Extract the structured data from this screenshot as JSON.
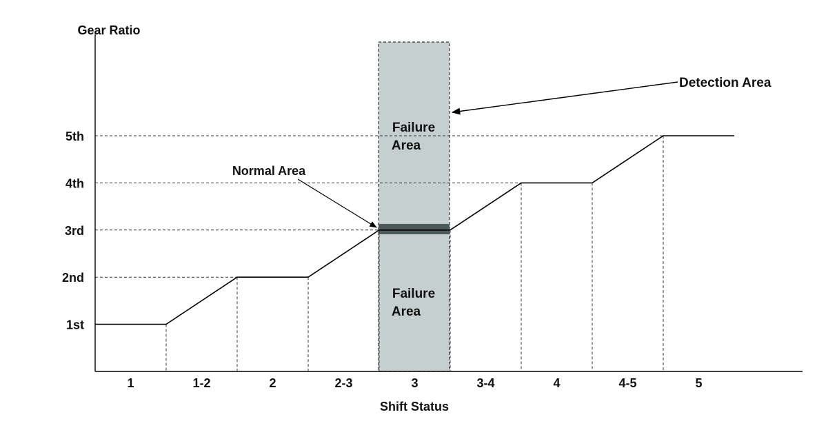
{
  "chart_data": {
    "type": "line",
    "ylabel": "Gear Ratio",
    "xlabel": "Shift Status",
    "y_ticks": [
      "1st",
      "2nd",
      "3rd",
      "4th",
      "5th"
    ],
    "x_categories": [
      "1",
      "1-2",
      "2",
      "2-3",
      "3",
      "3-4",
      "4",
      "4-5",
      "5"
    ],
    "series": [
      {
        "gear_level_by_status": [
          1,
          1.5,
          2,
          2.5,
          3,
          3.5,
          4,
          4.5,
          5
        ]
      }
    ]
  },
  "annotations": {
    "detection_area": "Detection Area",
    "normal_area": "Normal Area",
    "failure_area_top": [
      "Failure",
      "Area"
    ],
    "failure_area_bottom": [
      "Failure",
      "Area"
    ]
  },
  "colors": {
    "detection_fill": "#c5cfcf",
    "normal_band": "#4d5a5c",
    "line": "#000000"
  }
}
